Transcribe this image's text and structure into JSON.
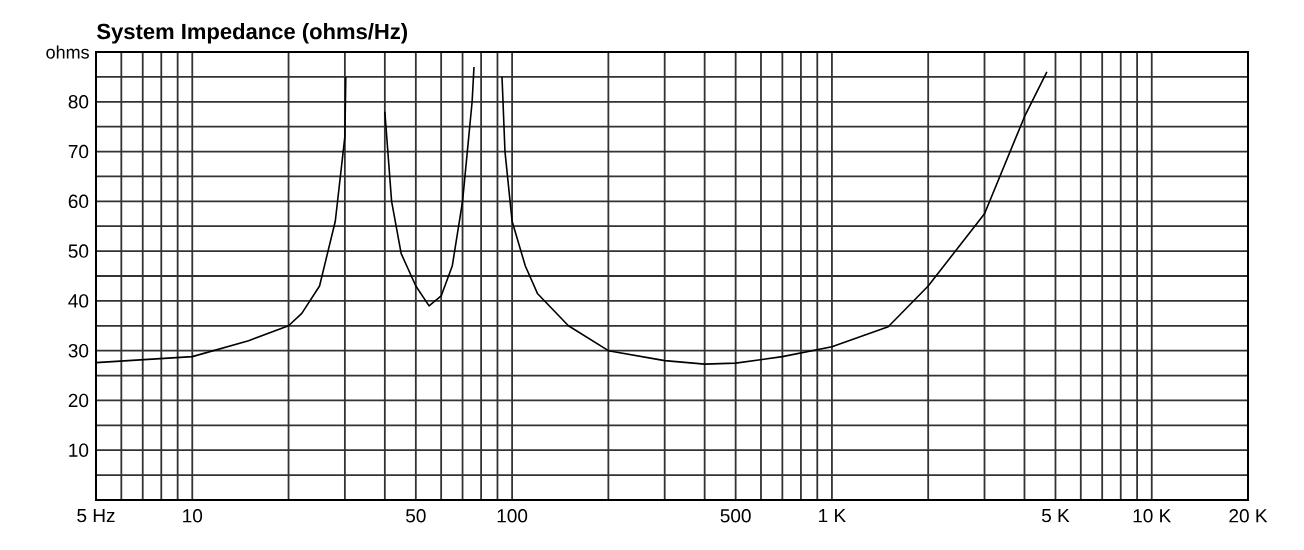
{
  "chart_data": {
    "type": "line",
    "title": "System Impedance (ohms/Hz)",
    "ylabel": "ohms",
    "color": "#000000",
    "log": "x",
    "grid": true,
    "x": [
      5,
      10,
      15,
      20,
      22,
      25,
      28,
      30,
      30.2,
      35,
      40,
      42,
      45,
      50,
      55,
      60,
      65,
      70,
      75,
      76,
      85,
      93,
      95,
      100,
      110,
      120,
      150,
      200,
      300,
      400,
      500,
      700,
      1000,
      1500,
      2000,
      3000,
      4000,
      4700
    ],
    "values": [
      27.6,
      28.8,
      32,
      35,
      37.5,
      43,
      56,
      73,
      85,
      null,
      78,
      60,
      49.5,
      43,
      39,
      41,
      47,
      60,
      80,
      87,
      null,
      85,
      70,
      56,
      47,
      41.5,
      35,
      30,
      28,
      27.3,
      27.5,
      28.8,
      30.8,
      34.8,
      43,
      57.5,
      77,
      86
    ],
    "xlim": [
      5,
      20000
    ],
    "ylim": [
      0,
      90
    ],
    "xticks": [
      {
        "value": 5,
        "label": "5 Hz"
      },
      {
        "value": 6,
        "label": null
      },
      {
        "value": 7,
        "label": null
      },
      {
        "value": 8,
        "label": null
      },
      {
        "value": 9,
        "label": null
      },
      10,
      {
        "value": 20,
        "label": null
      },
      {
        "value": 30,
        "label": null
      },
      {
        "value": 40,
        "label": null
      },
      50,
      {
        "value": 60,
        "label": null
      },
      {
        "value": 70,
        "label": null
      },
      {
        "value": 80,
        "label": null
      },
      {
        "value": 90,
        "label": null
      },
      100,
      {
        "value": 200,
        "label": null
      },
      {
        "value": 300,
        "label": null
      },
      {
        "value": 400,
        "label": null
      },
      500,
      {
        "value": 600,
        "label": null
      },
      {
        "value": 700,
        "label": null
      },
      {
        "value": 800,
        "label": null
      },
      {
        "value": 900,
        "label": null
      },
      {
        "value": 1000,
        "label": "1 K"
      },
      {
        "value": 2000,
        "label": null
      },
      {
        "value": 3000,
        "label": null
      },
      {
        "value": 4000,
        "label": null
      },
      {
        "value": 5000,
        "label": "5 K"
      },
      {
        "value": 6000,
        "label": null
      },
      {
        "value": 7000,
        "label": null
      },
      {
        "value": 8000,
        "label": null
      },
      {
        "value": 9000,
        "label": null
      },
      {
        "value": 10000,
        "label": "10 K"
      },
      {
        "value": 20000,
        "label": "20 K"
      }
    ],
    "yticks": [
      {
        "value": 5,
        "label": null
      },
      10,
      {
        "value": 15,
        "label": null
      },
      20,
      {
        "value": 25,
        "label": null
      },
      30,
      {
        "value": 35,
        "label": null
      },
      40,
      {
        "value": 45,
        "label": null
      },
      50,
      {
        "value": 55,
        "label": null
      },
      60,
      {
        "value": 65,
        "label": null
      },
      70,
      {
        "value": 75,
        "label": null
      },
      80,
      {
        "value": 85,
        "label": null
      }
    ]
  }
}
